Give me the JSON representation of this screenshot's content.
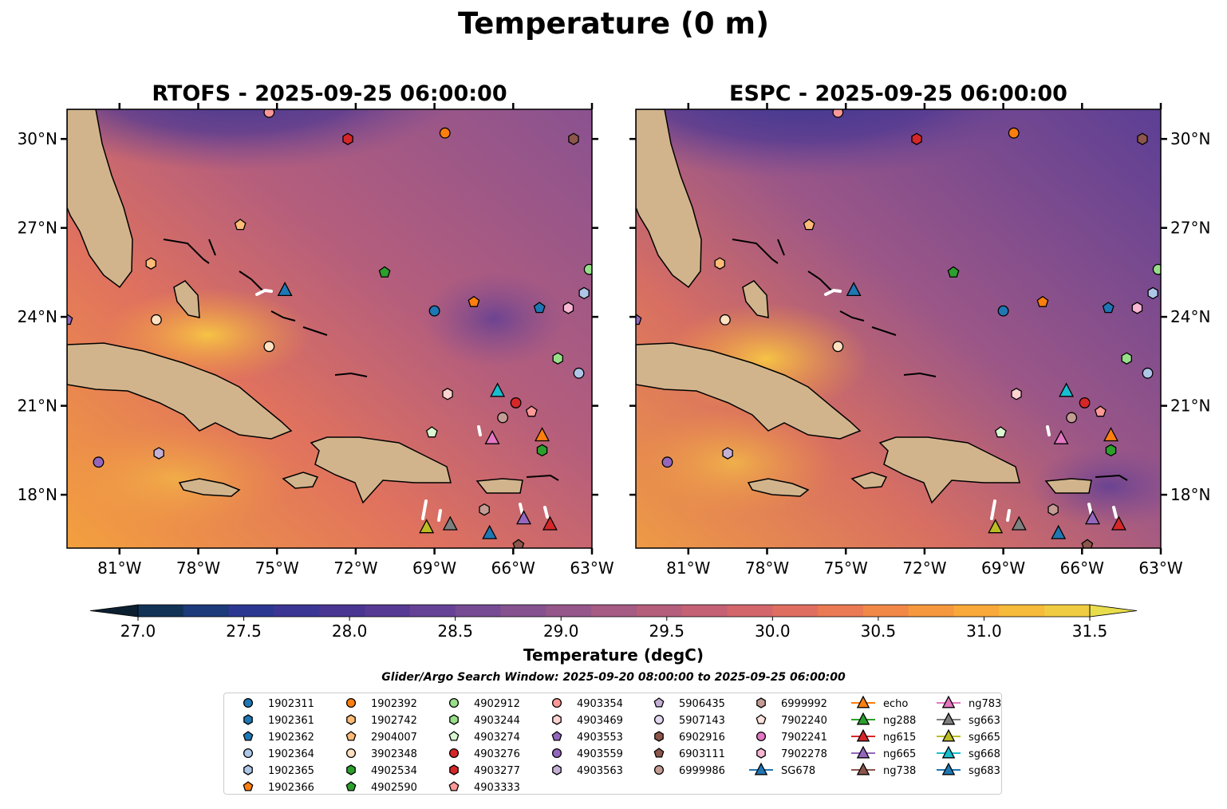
{
  "suptitle": "Temperature (0 m)",
  "panels": [
    {
      "id": "rtofs",
      "title": "RTOFS - 2025-09-25 06:00:00"
    },
    {
      "id": "espc",
      "title": "ESPC - 2025-09-25 06:00:00"
    }
  ],
  "colors": {
    "land": "#d2b48c",
    "sea_warm": "#f5a43c",
    "sea_mid": "#c4606e",
    "sea_cool": "#7b4e93",
    "sea_cold": "#3a2f8f"
  },
  "chart_data": {
    "type": "contour-map",
    "x_axis": {
      "range": [
        -83,
        -63
      ],
      "ticks": [
        -81,
        -78,
        -75,
        -72,
        -69,
        -66,
        -63
      ],
      "tick_labels": [
        "81°W",
        "78°W",
        "75°W",
        "72°W",
        "69°W",
        "66°W",
        "63°W"
      ]
    },
    "y_axis": {
      "range": [
        16.2,
        31
      ],
      "ticks": [
        18,
        21,
        24,
        27,
        30
      ],
      "tick_labels": [
        "18°N",
        "21°N",
        "24°N",
        "27°N",
        "30°N"
      ]
    },
    "colorbar": {
      "label": "Temperature (degC)",
      "min": 26.75,
      "max": 31.75,
      "step": 0.25,
      "extend": "both",
      "ticks": [
        27.0,
        27.5,
        28.0,
        28.5,
        29.0,
        29.5,
        30.0,
        30.5,
        31.0,
        31.5
      ],
      "tick_labels": [
        "27.0",
        "27.5",
        "28.0",
        "28.5",
        "29.0",
        "29.5",
        "30.0",
        "30.5",
        "31.0",
        "31.5"
      ],
      "colors": [
        "#0c1f30",
        "#123256",
        "#1d3a7a",
        "#2b3790",
        "#3b3593",
        "#493592",
        "#573a94",
        "#664296",
        "#764b93",
        "#85528f",
        "#955789",
        "#a55b83",
        "#b55e7c",
        "#c46174",
        "#d3666b",
        "#df6e60",
        "#ea7a53",
        "#f28847",
        "#f6983d",
        "#f8a93a",
        "#f6bb3b",
        "#efcc42",
        "#e8dd4c"
      ]
    },
    "search_window": "Glider/Argo Search Window: 2025-09-20 08:00:00 to 2025-09-25 06:00:00",
    "legend": [
      [
        "1902311",
        "1902361",
        "1902362",
        "1902364",
        "1902365",
        "1902366"
      ],
      [
        "1902392",
        "1902742",
        "2904007",
        "3902348",
        "4902534",
        "4902590"
      ],
      [
        "4902912",
        "4903244",
        "4903274",
        "4903276",
        "4903277",
        "4903333"
      ],
      [
        "4903354",
        "4903469",
        "4903553",
        "4903559",
        "4903563"
      ],
      [
        "5906435",
        "5907143",
        "6902916",
        "6903111",
        "6999986"
      ],
      [
        "6999992",
        "7902240",
        "7902241",
        "7902278",
        "SG678"
      ],
      [
        "echo",
        "ng288",
        "ng615",
        "ng665",
        "ng738"
      ],
      [
        "ng783",
        "sg663",
        "sg665",
        "sg668",
        "sg683"
      ]
    ],
    "legend_styles": {
      "1902311": {
        "m": "o",
        "c": "#1f77b4"
      },
      "1902361": {
        "m": "h",
        "c": "#1f77b4"
      },
      "1902362": {
        "m": "p",
        "c": "#1f77b4"
      },
      "1902364": {
        "m": "o",
        "c": "#aec7e8"
      },
      "1902365": {
        "m": "h",
        "c": "#aec7e8"
      },
      "1902366": {
        "m": "p",
        "c": "#ff7f0e"
      },
      "1902392": {
        "m": "o",
        "c": "#ff7f0e"
      },
      "1902742": {
        "m": "h",
        "c": "#ffbb78"
      },
      "2904007": {
        "m": "p",
        "c": "#ffbb78"
      },
      "3902348": {
        "m": "o",
        "c": "#ffe0c0"
      },
      "4902534": {
        "m": "h",
        "c": "#2ca02c"
      },
      "4902590": {
        "m": "p",
        "c": "#2ca02c"
      },
      "4902912": {
        "m": "o",
        "c": "#98df8a"
      },
      "4903244": {
        "m": "h",
        "c": "#98df8a"
      },
      "4903274": {
        "m": "p",
        "c": "#d9f7d0"
      },
      "4903276": {
        "m": "o",
        "c": "#d62728"
      },
      "4903277": {
        "m": "h",
        "c": "#d62728"
      },
      "4903333": {
        "m": "p",
        "c": "#ff9896"
      },
      "4903354": {
        "m": "o",
        "c": "#ff9896"
      },
      "4903469": {
        "m": "h",
        "c": "#ffd3d0"
      },
      "4903553": {
        "m": "p",
        "c": "#9467bd"
      },
      "4903559": {
        "m": "o",
        "c": "#9467bd"
      },
      "4903563": {
        "m": "h",
        "c": "#c5b0d5"
      },
      "5906435": {
        "m": "p",
        "c": "#c5b0d5"
      },
      "5907143": {
        "m": "o",
        "c": "#e5d8f0"
      },
      "6902916": {
        "m": "h",
        "c": "#8c564b"
      },
      "6903111": {
        "m": "p",
        "c": "#8c564b"
      },
      "6999986": {
        "m": "o",
        "c": "#c49c94"
      },
      "6999992": {
        "m": "h",
        "c": "#c49c94"
      },
      "7902240": {
        "m": "p",
        "c": "#fce4de"
      },
      "7902241": {
        "m": "o",
        "c": "#e377c2"
      },
      "7902278": {
        "m": "h",
        "c": "#f7b6d2"
      },
      "SG678": {
        "m": "^",
        "c": "#1f77b4",
        "line": true
      },
      "echo": {
        "m": "^",
        "c": "#ff7f0e",
        "line": true
      },
      "ng288": {
        "m": "^",
        "c": "#2ca02c",
        "line": true
      },
      "ng615": {
        "m": "^",
        "c": "#d62728",
        "line": true
      },
      "ng665": {
        "m": "^",
        "c": "#9467bd",
        "line": true
      },
      "ng738": {
        "m": "^",
        "c": "#8c564b",
        "line": true
      },
      "ng783": {
        "m": "^",
        "c": "#e377c2",
        "line": true
      },
      "sg663": {
        "m": "^",
        "c": "#7f7f7f",
        "line": true
      },
      "sg665": {
        "m": "^",
        "c": "#bcbd22",
        "line": true
      },
      "sg668": {
        "m": "^",
        "c": "#17becf",
        "line": true
      },
      "sg683": {
        "m": "^",
        "c": "#1f77b4",
        "line": true
      }
    },
    "points": [
      {
        "id": "1902311",
        "lon": -69.0,
        "lat": 24.2
      },
      {
        "id": "1902364",
        "lon": -63.5,
        "lat": 22.1
      },
      {
        "id": "1902365",
        "lon": -63.3,
        "lat": 24.8
      },
      {
        "id": "1902362",
        "lon": -65.0,
        "lat": 24.3
      },
      {
        "id": "1902366",
        "lon": -67.5,
        "lat": 24.5
      },
      {
        "id": "1902392",
        "lon": -68.6,
        "lat": 30.2
      },
      {
        "id": "2904007",
        "lon": -76.4,
        "lat": 27.1
      },
      {
        "id": "1902742",
        "lon": -79.8,
        "lat": 25.8
      },
      {
        "id": "3902348",
        "lon": -79.6,
        "lat": 23.9
      },
      {
        "id": "4902534",
        "lon": -64.9,
        "lat": 19.5
      },
      {
        "id": "4902590",
        "lon": -70.9,
        "lat": 25.5
      },
      {
        "id": "4902912",
        "lon": -63.1,
        "lat": 25.6
      },
      {
        "id": "4903244",
        "lon": -64.3,
        "lat": 22.6
      },
      {
        "id": "4903274",
        "lon": -69.1,
        "lat": 20.1
      },
      {
        "id": "4903276",
        "lon": -65.9,
        "lat": 21.1
      },
      {
        "id": "4903277",
        "lon": -72.3,
        "lat": 30.0
      },
      {
        "id": "4903333",
        "lon": -65.3,
        "lat": 20.8
      },
      {
        "id": "4903354",
        "lon": -75.3,
        "lat": 30.9
      },
      {
        "id": "4903469",
        "lon": -68.5,
        "lat": 21.4
      },
      {
        "id": "4903553",
        "lon": -83.0,
        "lat": 23.9
      },
      {
        "id": "4903559",
        "lon": -81.8,
        "lat": 19.1
      },
      {
        "id": "4903563",
        "lon": -79.5,
        "lat": 19.4
      },
      {
        "id": "6902916",
        "lon": -63.7,
        "lat": 30.0
      },
      {
        "id": "6903111",
        "lon": -65.8,
        "lat": 16.3
      },
      {
        "id": "6999986",
        "lon": -66.4,
        "lat": 20.6
      },
      {
        "id": "6999992",
        "lon": -67.1,
        "lat": 17.5
      },
      {
        "id": "7902278",
        "lon": -63.9,
        "lat": 24.3
      },
      {
        "id": "3902348",
        "lon": -75.3,
        "lat": 23.0
      },
      {
        "id": "SG678",
        "lon": -74.7,
        "lat": 24.9
      },
      {
        "id": "echo",
        "lon": -64.9,
        "lat": 20.0
      },
      {
        "id": "ng615",
        "lon": -64.6,
        "lat": 17.0
      },
      {
        "id": "ng665",
        "lon": -65.6,
        "lat": 17.2
      },
      {
        "id": "ng783",
        "lon": -66.8,
        "lat": 19.9
      },
      {
        "id": "sg663",
        "lon": -68.4,
        "lat": 17.0
      },
      {
        "id": "sg665",
        "lon": -69.3,
        "lat": 16.9
      },
      {
        "id": "sg668",
        "lon": -66.6,
        "lat": 21.5
      },
      {
        "id": "sg683",
        "lon": -66.9,
        "lat": 16.7
      }
    ]
  }
}
